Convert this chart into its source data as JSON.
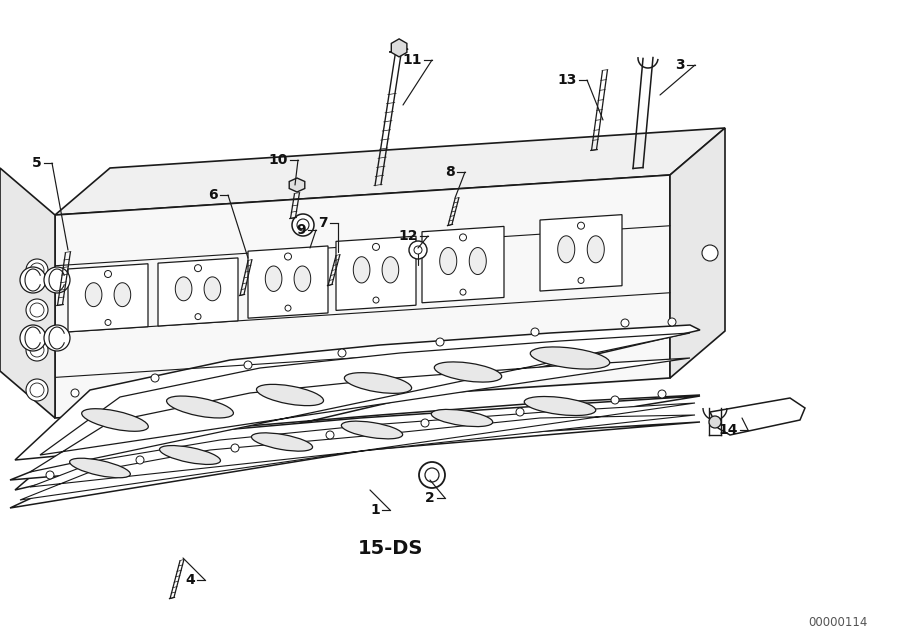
{
  "bg_color": "#ffffff",
  "line_color": "#1a1a1a",
  "figsize": [
    9.0,
    6.35
  ],
  "dpi": 100,
  "watermark": "00000114",
  "subtitle": "15-DS",
  "parts_info": [
    [
      "1",
      390,
      510,
      370,
      490,
      "left"
    ],
    [
      "2",
      445,
      498,
      430,
      480,
      "left"
    ],
    [
      "3",
      695,
      65,
      660,
      95,
      "left"
    ],
    [
      "4",
      205,
      580,
      183,
      558,
      "left"
    ],
    [
      "5",
      52,
      163,
      68,
      250,
      "left"
    ],
    [
      "6",
      228,
      195,
      248,
      258,
      "left"
    ],
    [
      "7",
      338,
      223,
      338,
      252,
      "left"
    ],
    [
      "8",
      465,
      172,
      455,
      198,
      "left"
    ],
    [
      "9",
      316,
      230,
      310,
      248,
      "left"
    ],
    [
      "10",
      298,
      160,
      295,
      185,
      "left"
    ],
    [
      "11",
      432,
      60,
      403,
      105,
      "left"
    ],
    [
      "12",
      428,
      236,
      418,
      248,
      "left"
    ],
    [
      "13",
      587,
      80,
      603,
      120,
      "left"
    ],
    [
      "14",
      748,
      430,
      742,
      418,
      "left"
    ]
  ]
}
